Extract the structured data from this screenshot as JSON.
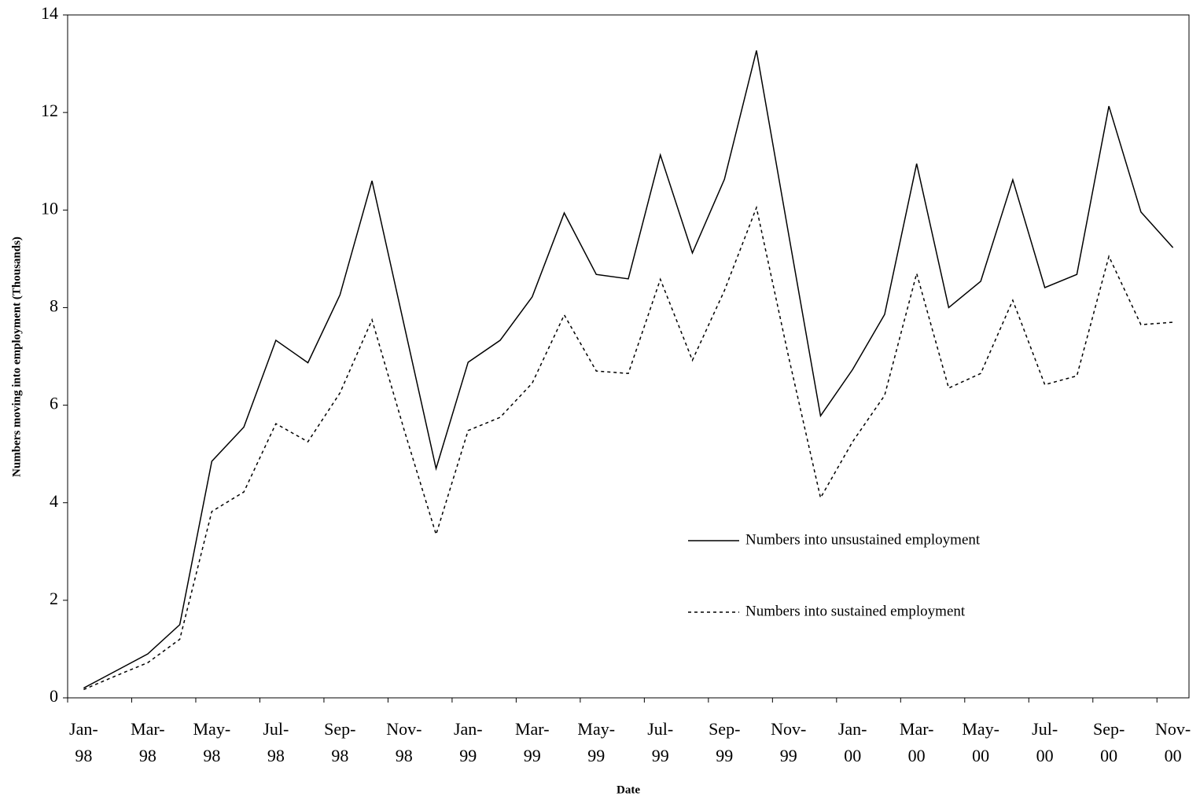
{
  "chart_data": {
    "type": "line",
    "x_label": "Date",
    "y_label": "Numbers moving into employment (Thousands)",
    "categories": [
      "Jan-98",
      null,
      "Mar-98",
      null,
      "May-98",
      null,
      "Jul-98",
      null,
      "Sep-98",
      null,
      "Nov-98",
      null,
      "Jan-99",
      null,
      "Mar-99",
      null,
      "May-99",
      null,
      "Jul-99",
      null,
      "Sep-99",
      null,
      "Nov-99",
      null,
      "Jan-00",
      null,
      "Mar-00",
      null,
      "May-00",
      null,
      "Jul-00",
      null,
      "Sep-00",
      null,
      "Nov-00"
    ],
    "series": [
      {
        "name": "Numbers into unsustained employment",
        "color": "#000000",
        "line_style": "solid",
        "values": [
          0.2,
          0.55,
          0.9,
          1.5,
          4.85,
          5.55,
          7.33,
          6.87,
          8.26,
          10.6,
          7.65,
          4.7,
          6.88,
          7.33,
          8.22,
          9.94,
          8.68,
          8.59,
          11.13,
          9.12,
          10.63,
          13.27,
          9.52,
          5.78,
          6.73,
          7.86,
          10.95,
          8.0,
          8.54,
          10.62,
          8.41,
          8.68,
          12.13,
          9.96,
          9.23
        ]
      },
      {
        "name": "Numbers into sustained employment",
        "color": "#000000",
        "line_style": "dotted",
        "values": [
          0.17,
          0.45,
          0.72,
          1.2,
          3.82,
          4.22,
          5.62,
          5.25,
          6.25,
          7.75,
          5.5,
          3.35,
          5.48,
          5.75,
          6.45,
          7.85,
          6.7,
          6.65,
          8.58,
          6.92,
          8.35,
          10.05,
          7.0,
          4.1,
          5.25,
          6.2,
          8.7,
          6.35,
          6.65,
          8.15,
          6.42,
          6.6,
          9.05,
          7.65,
          7.7
        ]
      }
    ],
    "ylim": [
      0,
      14
    ],
    "yticks": [
      0,
      2,
      4,
      6,
      8,
      10,
      12,
      14
    ],
    "grid": false
  }
}
